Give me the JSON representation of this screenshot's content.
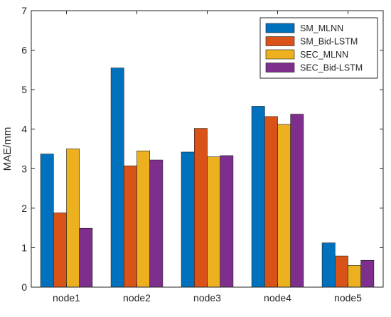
{
  "chart_data": {
    "type": "bar",
    "title": "",
    "xlabel": "",
    "ylabel": "MAE/mm",
    "ylim": [
      0,
      7
    ],
    "yticks": [
      "0",
      "1",
      "2",
      "3",
      "4",
      "5",
      "6",
      "7"
    ],
    "categories": [
      "node1",
      "node2",
      "node3",
      "node4",
      "node5"
    ],
    "series": [
      {
        "name": "SM_MLNN",
        "color": "#0072BD",
        "values": [
          3.37,
          5.55,
          3.42,
          4.58,
          1.12
        ]
      },
      {
        "name": "SM_Bid-LSTM",
        "color": "#D95319",
        "values": [
          1.88,
          3.07,
          4.02,
          4.32,
          0.79
        ]
      },
      {
        "name": "SEC_MLNN",
        "color": "#EDB120",
        "values": [
          3.5,
          3.45,
          3.3,
          4.12,
          0.55
        ]
      },
      {
        "name": "SEC_Bid-LSTM",
        "color": "#7E2F8E",
        "values": [
          1.49,
          3.22,
          3.33,
          4.38,
          0.68
        ]
      }
    ],
    "grid": false,
    "legend_position": "top-right",
    "axis_color": "#262626"
  }
}
